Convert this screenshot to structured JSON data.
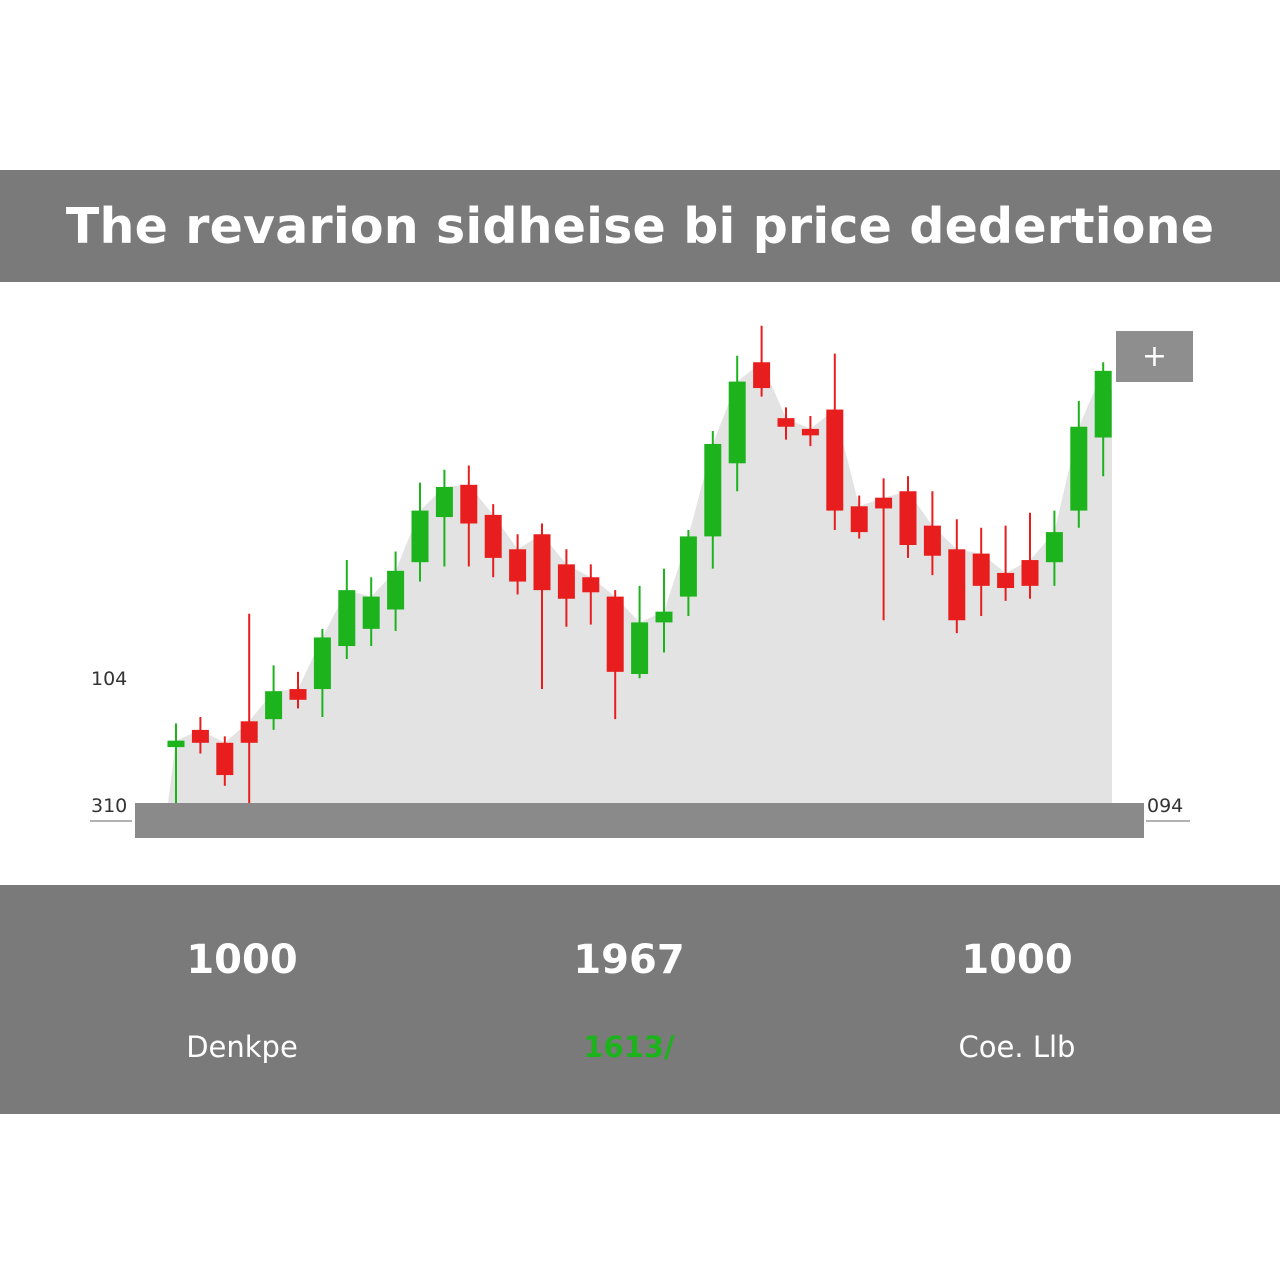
{
  "title": "The revarion sidheise bi price dedertione",
  "zoom_label": "+",
  "axis_labels": {
    "left_upper": "104",
    "left_lower": "310",
    "right_lower": "094"
  },
  "stats": [
    {
      "value": "1000",
      "label": "Denkpe",
      "label_color": "#ffffff"
    },
    {
      "value": "1967",
      "label": "1613/",
      "label_color": "#1db31d"
    },
    {
      "value": "1000",
      "label": "Coe. Llb",
      "label_color": "#ffffff"
    }
  ],
  "colors": {
    "up": "#1db31d",
    "down": "#e81e1e",
    "area_fill": "#e3e3e3",
    "bar": "#7a7a7a"
  },
  "chart_data": {
    "type": "candlestick",
    "title": "The revarion sidheise bi price dedertione",
    "y_ticks": [
      310,
      104
    ],
    "ylim": [
      0,
      100
    ],
    "candles": [
      {
        "open": 13.0,
        "close": 14.5,
        "high": 18.5,
        "low": 0.0
      },
      {
        "open": 17.0,
        "close": 14.0,
        "high": 20.0,
        "low": 11.5
      },
      {
        "open": 14.0,
        "close": 6.5,
        "high": 15.5,
        "low": 4.0
      },
      {
        "open": 19.0,
        "close": 14.0,
        "high": 44.0,
        "low": 0.0
      },
      {
        "open": 19.5,
        "close": 26.0,
        "high": 32.0,
        "low": 17.0
      },
      {
        "open": 26.5,
        "close": 24.0,
        "high": 30.5,
        "low": 22.0
      },
      {
        "open": 26.5,
        "close": 38.5,
        "high": 40.5,
        "low": 20.0
      },
      {
        "open": 36.5,
        "close": 49.5,
        "high": 56.5,
        "low": 33.5
      },
      {
        "open": 40.5,
        "close": 48.0,
        "high": 52.5,
        "low": 36.5
      },
      {
        "open": 45.0,
        "close": 54.0,
        "high": 58.5,
        "low": 40.0
      },
      {
        "open": 56.0,
        "close": 68.0,
        "high": 74.5,
        "low": 51.5
      },
      {
        "open": 66.5,
        "close": 73.5,
        "high": 77.5,
        "low": 55.0
      },
      {
        "open": 74.0,
        "close": 65.0,
        "high": 78.5,
        "low": 55.0
      },
      {
        "open": 67.0,
        "close": 57.0,
        "high": 69.5,
        "low": 52.5
      },
      {
        "open": 59.0,
        "close": 51.5,
        "high": 62.5,
        "low": 48.5
      },
      {
        "open": 62.5,
        "close": 49.5,
        "high": 65.0,
        "low": 26.5
      },
      {
        "open": 55.5,
        "close": 47.5,
        "high": 59.0,
        "low": 41.0
      },
      {
        "open": 52.5,
        "close": 49.0,
        "high": 55.5,
        "low": 41.5
      },
      {
        "open": 48.0,
        "close": 30.5,
        "high": 49.5,
        "low": 19.5
      },
      {
        "open": 30.0,
        "close": 42.0,
        "high": 50.5,
        "low": 29.0
      },
      {
        "open": 42.0,
        "close": 44.5,
        "high": 54.5,
        "low": 35.0
      },
      {
        "open": 48.0,
        "close": 62.0,
        "high": 63.5,
        "low": 43.5
      },
      {
        "open": 62.0,
        "close": 83.5,
        "high": 86.5,
        "low": 54.5
      },
      {
        "open": 79.0,
        "close": 98.0,
        "high": 104.0,
        "low": 72.5
      },
      {
        "open": 102.5,
        "close": 96.5,
        "high": 111.0,
        "low": 94.5
      },
      {
        "open": 89.5,
        "close": 87.5,
        "high": 92.0,
        "low": 84.5
      },
      {
        "open": 87.0,
        "close": 85.5,
        "high": 90.0,
        "low": 83.0
      },
      {
        "open": 91.5,
        "close": 68.0,
        "high": 104.5,
        "low": 63.5
      },
      {
        "open": 69.0,
        "close": 63.0,
        "high": 71.5,
        "low": 61.5
      },
      {
        "open": 71.0,
        "close": 68.5,
        "high": 75.5,
        "low": 42.5
      },
      {
        "open": 72.5,
        "close": 60.0,
        "high": 76.0,
        "low": 57.0
      },
      {
        "open": 64.5,
        "close": 57.5,
        "high": 72.5,
        "low": 53.0
      },
      {
        "open": 59.0,
        "close": 42.5,
        "high": 66.0,
        "low": 39.5
      },
      {
        "open": 58.0,
        "close": 50.5,
        "high": 64.0,
        "low": 43.5
      },
      {
        "open": 53.5,
        "close": 50.0,
        "high": 64.5,
        "low": 47.0
      },
      {
        "open": 56.5,
        "close": 50.5,
        "high": 67.5,
        "low": 47.5
      },
      {
        "open": 56.0,
        "close": 63.0,
        "high": 68.0,
        "low": 50.5
      },
      {
        "open": 68.0,
        "close": 87.5,
        "high": 93.5,
        "low": 64.0
      },
      {
        "open": 85.0,
        "close": 100.5,
        "high": 102.5,
        "low": 76.0
      }
    ]
  }
}
